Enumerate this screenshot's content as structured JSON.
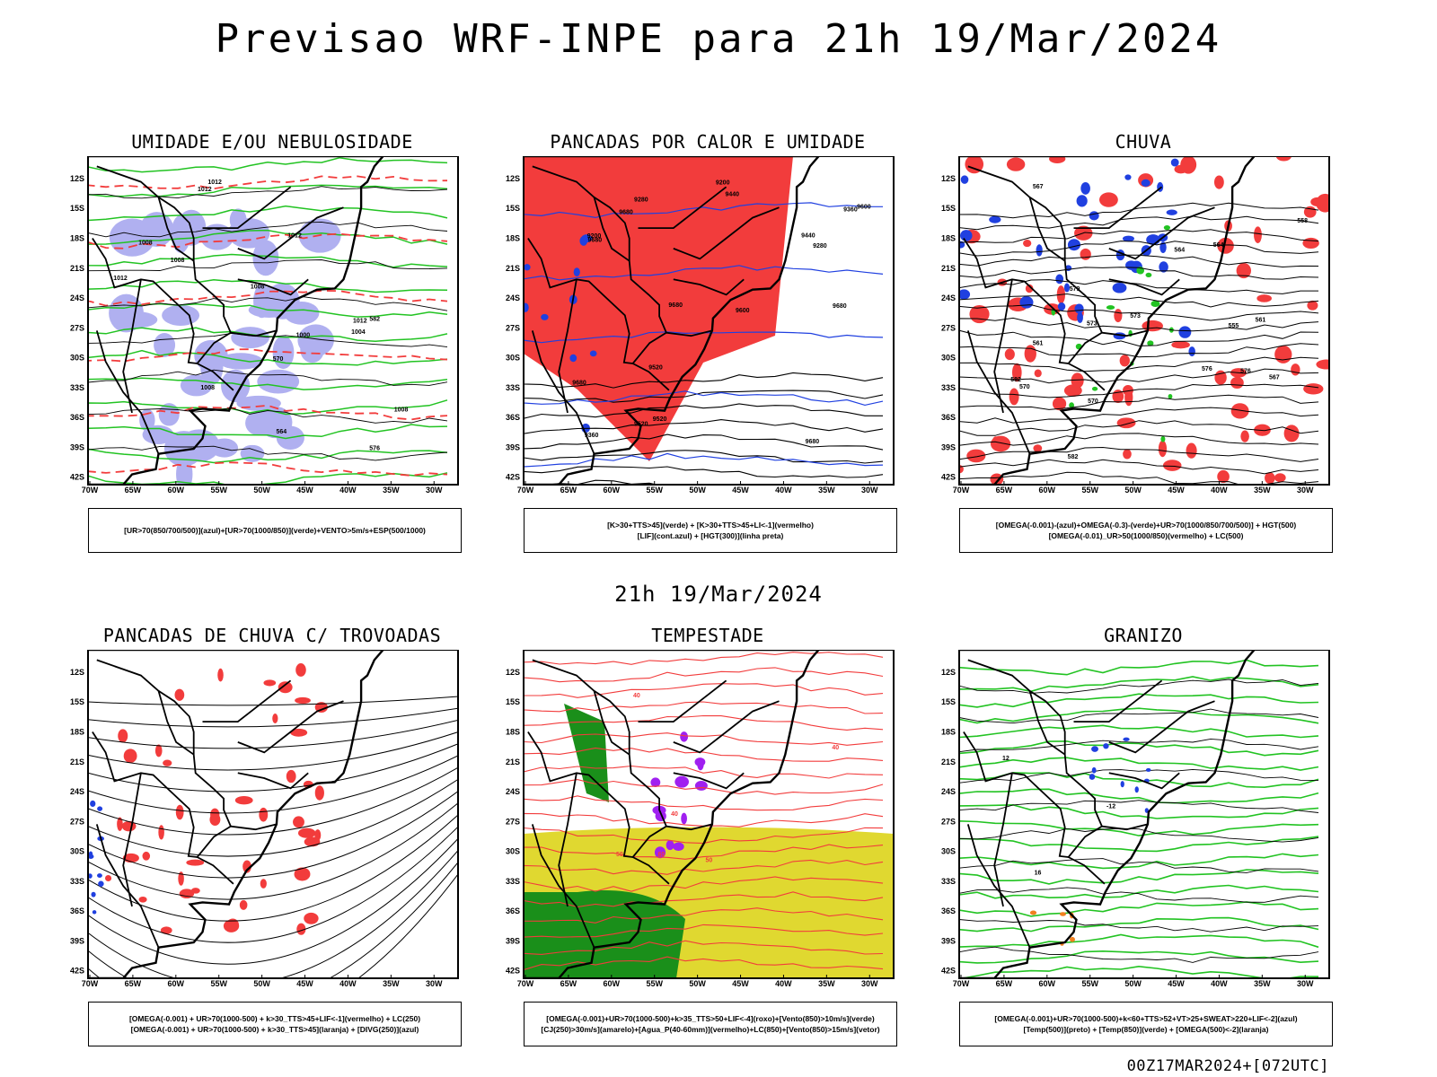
{
  "title": "Previsao WRF-INPE  para 21h 19/Mar/2024",
  "mid_title": "21h 19/Mar/2024",
  "footer": "00Z17MAR2024+[072UTC]",
  "axes": {
    "lat_labels": [
      "12S",
      "15S",
      "18S",
      "21S",
      "24S",
      "27S",
      "30S",
      "33S",
      "36S",
      "39S",
      "42S"
    ],
    "lon_labels": [
      "70W",
      "65W",
      "60W",
      "55W",
      "50W",
      "45W",
      "40W",
      "35W",
      "30W"
    ]
  },
  "colors": {
    "red": "#f23c3c",
    "green": "#22c322",
    "blue": "#2040e0",
    "lavender": "#b0b0f0",
    "yellow": "#e0d830",
    "dkgreen": "#1a8f1a",
    "purple": "#a020f0",
    "orange": "#f08020"
  },
  "panels": [
    {
      "title": "UMIDADE E/OU NEBULOSIDADE",
      "legend": [
        "[UR>70(850/700/500)](azul)+[UR>70(1000/850)](verde)+VENTO>5m/s+ESP(500/1000)"
      ],
      "contour_labels": [
        "1008",
        "1008",
        "1008",
        "1012",
        "1008",
        "1012",
        "1012",
        "1000",
        "1008",
        "1004",
        "1012",
        "1012",
        "576",
        "582",
        "570",
        "564"
      ]
    },
    {
      "title": "PANCADAS POR CALOR E UMIDADE",
      "legend": [
        "[K>30+TTS>45](verde) + [K>30+TTS>45+LI<-1](vermelho)",
        "[LIF](cont.azul) + [HGT(300)](linha preta)"
      ],
      "contour_labels": [
        "9680",
        "9680",
        "9680",
        "9680",
        "9680",
        "9680",
        "9600",
        "9520",
        "9520",
        "9360",
        "9440",
        "9280",
        "9200",
        "9600",
        "9520",
        "9440",
        "9360",
        "9280",
        "9200"
      ]
    },
    {
      "title": "CHUVA",
      "legend": [
        "[OMEGA(-0.001)-(azul)+OMEGA(-0.3)-(verde)+UR>70(1000/850/700/500)] + HGT(500)",
        "[OMEGA(-0.01)_UR>50(1000/850)(vermelho) + LC(500)"
      ],
      "contour_labels": [
        "582",
        "576",
        "573",
        "570",
        "567",
        "564",
        "561",
        "558",
        "555",
        "582",
        "579",
        "576",
        "573",
        "570",
        "567",
        "564",
        "561"
      ]
    },
    {
      "title": "PANCADAS DE CHUVA C/ TROVOADAS",
      "legend": [
        "[OMEGA(-0.001) + UR>70(1000-500) + k>30_TTS>45+LIF<-1](vermelho) + LC(250)",
        "[OMEGA(-0.001) + UR>70(1000-500) + k>30_TTS>45](laranja) + [DIVG(250)](azul)"
      ],
      "contour_labels": []
    },
    {
      "title": "TEMPESTADE",
      "legend": [
        "[OMEGA(-0.001)+UR>70(1000-500)+k>35_TTS>50+LIF<-4](roxo)+[Vento(850)>10m/s](verde)",
        "[CJ(250)>30m/s](amarelo)+[Agua_P(40-60mm)](vermelho)+LC(850)+[Vento(850)>15m/s](vetor)"
      ],
      "contour_labels": [
        "60",
        "40",
        "50",
        "40",
        "50",
        "40"
      ]
    },
    {
      "title": "GRANIZO",
      "legend": [
        "[OMEGA(-0.001)+UR>70(1000-500)+k<60+TTS>52+VT>25+SWEAT>220+LIF<-2](azul)",
        "[Temp(500)](preto) + [Temp(850)](verde) + [OMEGA(500)<-2](laranja)"
      ],
      "contour_labels": [
        "-12",
        "12",
        "16"
      ]
    }
  ]
}
